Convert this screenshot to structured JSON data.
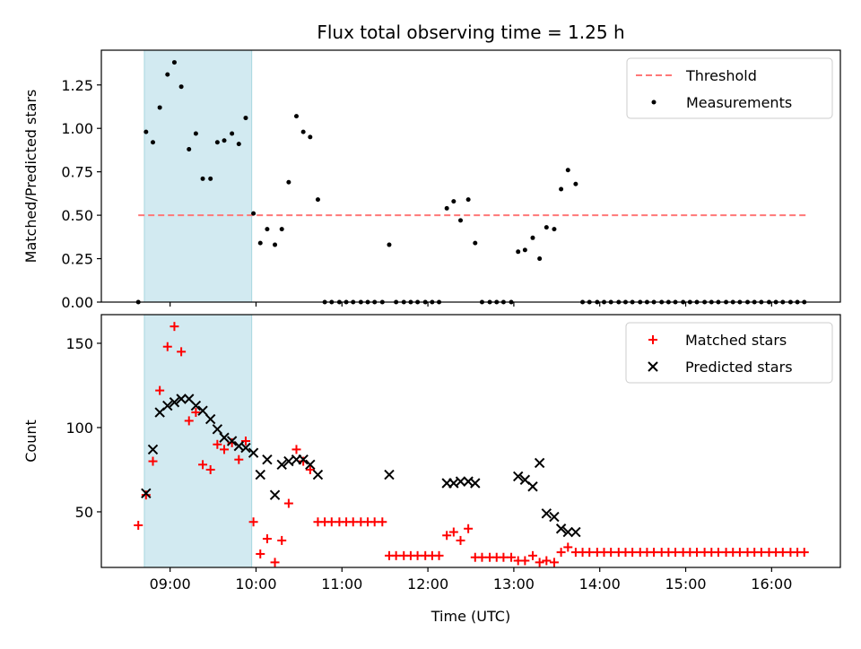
{
  "title": "Flux total observing time = 1.25 h",
  "colors": {
    "threshold": "#ff7777",
    "measurements": "#000000",
    "matched": "#ff0000",
    "predicted": "#000000",
    "shade": "#add8e6"
  },
  "chart_data": [
    {
      "type": "scatter",
      "panel": "top",
      "ylabel": "Matched/Predicted stars",
      "xlabel": "",
      "x_unit": "hours UTC",
      "xlim": [
        8.2,
        16.8
      ],
      "ylim": [
        0,
        1.45
      ],
      "yticks": [
        0.0,
        0.25,
        0.5,
        0.75,
        1.0,
        1.25
      ],
      "ytick_labels": [
        "0.00",
        "0.25",
        "0.50",
        "0.75",
        "1.00",
        "1.25"
      ],
      "shaded_span": [
        8.7,
        9.95
      ],
      "threshold": {
        "name": "Threshold",
        "y": 0.5,
        "x": [
          8.63,
          16.4
        ]
      },
      "legend": {
        "position": "top-right",
        "entries": [
          "Threshold",
          "Measurements"
        ]
      },
      "series": [
        {
          "name": "Measurements",
          "x": [
            8.63,
            8.72,
            8.8,
            8.88,
            8.97,
            9.05,
            9.13,
            9.22,
            9.3,
            9.38,
            9.47,
            9.55,
            9.63,
            9.72,
            9.8,
            9.88,
            9.97,
            10.05,
            10.13,
            10.22,
            10.3,
            10.38,
            10.47,
            10.55,
            10.63,
            10.72,
            10.8,
            10.88,
            10.97,
            11.05,
            11.13,
            11.22,
            11.3,
            11.38,
            11.47,
            11.55,
            11.63,
            11.72,
            11.8,
            11.88,
            11.97,
            12.05,
            12.13,
            12.22,
            12.3,
            12.38,
            12.47,
            12.55,
            12.63,
            12.72,
            12.8,
            12.88,
            12.97,
            13.05,
            13.13,
            13.22,
            13.3,
            13.38,
            13.47,
            13.55,
            13.63,
            13.72,
            13.8,
            13.88,
            13.97,
            14.05,
            14.13,
            14.22,
            14.3,
            14.38,
            14.47,
            14.55,
            14.63,
            14.72,
            14.8,
            14.88,
            14.97,
            15.05,
            15.13,
            15.22,
            15.3,
            15.38,
            15.47,
            15.55,
            15.63,
            15.72,
            15.8,
            15.88,
            15.97,
            16.05,
            16.13,
            16.22,
            16.3,
            16.38
          ],
          "y": [
            0.0,
            0.98,
            0.92,
            1.12,
            1.31,
            1.38,
            1.24,
            0.88,
            0.97,
            0.71,
            0.71,
            0.92,
            0.93,
            0.97,
            0.91,
            1.06,
            0.51,
            0.34,
            0.42,
            0.33,
            0.42,
            0.69,
            1.07,
            0.98,
            0.95,
            0.59,
            0.0,
            0.0,
            0.0,
            0.0,
            0.0,
            0.0,
            0.0,
            0.0,
            0.0,
            0.33,
            0.0,
            0.0,
            0.0,
            0.0,
            0.0,
            0.0,
            0.0,
            0.54,
            0.58,
            0.47,
            0.59,
            0.34,
            0.0,
            0.0,
            0.0,
            0.0,
            0.0,
            0.29,
            0.3,
            0.37,
            0.25,
            0.43,
            0.42,
            0.65,
            0.76,
            0.68,
            0.0,
            0.0,
            0.0,
            0.0,
            0.0,
            0.0,
            0.0,
            0.0,
            0.0,
            0.0,
            0.0,
            0.0,
            0.0,
            0.0,
            0.0,
            0.0,
            0.0,
            0.0,
            0.0,
            0.0,
            0.0,
            0.0,
            0.0,
            0.0,
            0.0,
            0.0,
            0.0,
            0.0,
            0.0,
            0.0,
            0.0,
            0.0
          ]
        }
      ]
    },
    {
      "type": "scatter",
      "panel": "bottom",
      "ylabel": "Count",
      "xlabel": "Time (UTC)",
      "x_unit": "hours UTC",
      "xlim": [
        8.2,
        16.8
      ],
      "ylim": [
        17,
        167
      ],
      "yticks": [
        50,
        100,
        150
      ],
      "ytick_labels": [
        "50",
        "100",
        "150"
      ],
      "xticks": [
        9,
        10,
        11,
        12,
        13,
        14,
        15,
        16
      ],
      "xtick_labels": [
        "09:00",
        "10:00",
        "11:00",
        "12:00",
        "13:00",
        "14:00",
        "15:00",
        "16:00"
      ],
      "shaded_span": [
        8.7,
        9.95
      ],
      "legend": {
        "position": "top-right",
        "entries": [
          "Matched stars",
          "Predicted stars"
        ]
      },
      "series": [
        {
          "name": "Matched stars",
          "marker": "plus",
          "x": [
            8.63,
            8.72,
            8.8,
            8.88,
            8.97,
            9.05,
            9.13,
            9.22,
            9.3,
            9.38,
            9.47,
            9.55,
            9.63,
            9.72,
            9.8,
            9.88,
            9.97,
            10.05,
            10.13,
            10.22,
            10.3,
            10.38,
            10.47,
            10.55,
            10.63,
            10.72,
            10.8,
            10.88,
            10.97,
            11.05,
            11.13,
            11.22,
            11.3,
            11.38,
            11.47,
            11.55,
            11.63,
            11.72,
            11.8,
            11.88,
            11.97,
            12.05,
            12.13,
            12.22,
            12.3,
            12.38,
            12.47,
            12.55,
            12.63,
            12.72,
            12.8,
            12.88,
            12.97,
            13.05,
            13.13,
            13.22,
            13.3,
            13.38,
            13.47,
            13.55,
            13.63,
            13.72,
            13.8,
            13.88,
            13.97,
            14.05,
            14.13,
            14.22,
            14.3,
            14.38,
            14.47,
            14.55,
            14.63,
            14.72,
            14.8,
            14.88,
            14.97,
            15.05,
            15.13,
            15.22,
            15.3,
            15.38,
            15.47,
            15.55,
            15.63,
            15.72,
            15.8,
            15.88,
            15.97,
            16.05,
            16.13,
            16.22,
            16.3,
            16.38
          ],
          "y": [
            42,
            60,
            80,
            122,
            148,
            160,
            145,
            104,
            109,
            78,
            75,
            90,
            87,
            91,
            81,
            92,
            44,
            25,
            34,
            20,
            33,
            55,
            87,
            80,
            75,
            44,
            44,
            44,
            44,
            44,
            44,
            44,
            44,
            44,
            44,
            24,
            24,
            24,
            24,
            24,
            24,
            24,
            24,
            36,
            38,
            33,
            40,
            23,
            23,
            23,
            23,
            23,
            23,
            21,
            21,
            24,
            20,
            21,
            20,
            26,
            29,
            26,
            26,
            26,
            26,
            26,
            26,
            26,
            26,
            26,
            26,
            26,
            26,
            26,
            26,
            26,
            26,
            26,
            26,
            26,
            26,
            26,
            26,
            26,
            26,
            26,
            26,
            26,
            26,
            26,
            26,
            26,
            26,
            26
          ]
        },
        {
          "name": "Predicted stars",
          "marker": "x",
          "x": [
            8.72,
            8.8,
            8.88,
            8.97,
            9.05,
            9.13,
            9.22,
            9.3,
            9.38,
            9.47,
            9.55,
            9.63,
            9.72,
            9.8,
            9.88,
            9.97,
            10.05,
            10.13,
            10.22,
            10.3,
            10.38,
            10.47,
            10.55,
            10.63,
            10.72,
            11.55,
            12.22,
            12.3,
            12.38,
            12.47,
            12.55,
            13.05,
            13.13,
            13.22,
            13.3,
            13.38,
            13.47,
            13.55,
            13.63,
            13.72
          ],
          "y": [
            61,
            87,
            109,
            113,
            115,
            117,
            117,
            113,
            110,
            105,
            99,
            94,
            92,
            89,
            88,
            85,
            72,
            81,
            60,
            78,
            80,
            81,
            81,
            78,
            72,
            72,
            67,
            67,
            68,
            68,
            67,
            71,
            69,
            65,
            79,
            49,
            47,
            40,
            38,
            38
          ]
        }
      ]
    }
  ]
}
